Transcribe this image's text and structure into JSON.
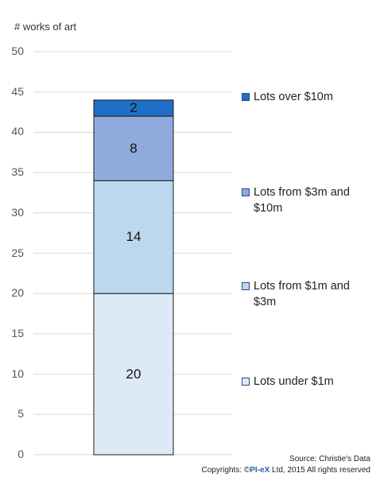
{
  "chart_data": {
    "type": "bar",
    "stacked": true,
    "ylabel": "# works of art",
    "ylim": [
      0,
      50
    ],
    "yticks": [
      0,
      5,
      10,
      15,
      20,
      25,
      30,
      35,
      40,
      45,
      50
    ],
    "grid": true,
    "legend_position": "right",
    "series": [
      {
        "name": "Lots under $1m",
        "value": 20,
        "color": "#dde9f6"
      },
      {
        "name": "Lots from $1m and $3m",
        "value": 14,
        "color": "#bdd7ee"
      },
      {
        "name": "Lots from $3m and $10m",
        "value": 8,
        "color": "#8faadc"
      },
      {
        "name": "Lots over $10m",
        "value": 2,
        "color": "#1f6fc6"
      }
    ]
  },
  "footer": {
    "source": "Source: Christie's Data",
    "copyright_prefix": "Copyrights: ©",
    "brand_pi": "PI",
    "brand_dash": "-",
    "brand_ex": "eX",
    "copyright_suffix": " Ltd, 2015 All rights reserved"
  }
}
